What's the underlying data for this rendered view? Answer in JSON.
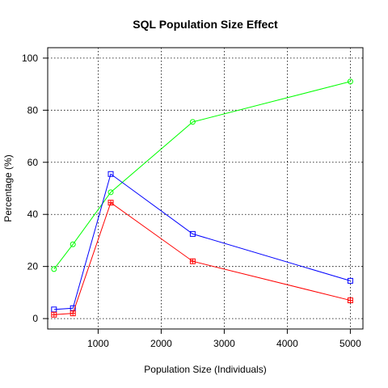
{
  "chart_data": {
    "type": "line",
    "title": "SQL Population Size Effect",
    "xlabel": "Population Size (Individuals)",
    "ylabel": "Percentage (%)",
    "xlim": [
      200,
      5200
    ],
    "ylim": [
      -4,
      104
    ],
    "x_ticks": [
      1000,
      2000,
      3000,
      4000,
      5000
    ],
    "y_ticks": [
      0,
      20,
      40,
      60,
      80,
      100
    ],
    "grid": true,
    "x": [
      300,
      600,
      1200,
      2500,
      5000
    ],
    "series": [
      {
        "color": "#00ff00",
        "marker": "circle",
        "values": [
          19,
          28.5,
          48.5,
          75.5,
          91
        ]
      },
      {
        "color": "#0000ff",
        "marker": "square",
        "values": [
          3.5,
          4,
          55.5,
          32.5,
          14.5
        ]
      },
      {
        "color": "#ff0000",
        "marker": "square-cross",
        "values": [
          1.5,
          2,
          44.5,
          22,
          7
        ]
      }
    ]
  }
}
